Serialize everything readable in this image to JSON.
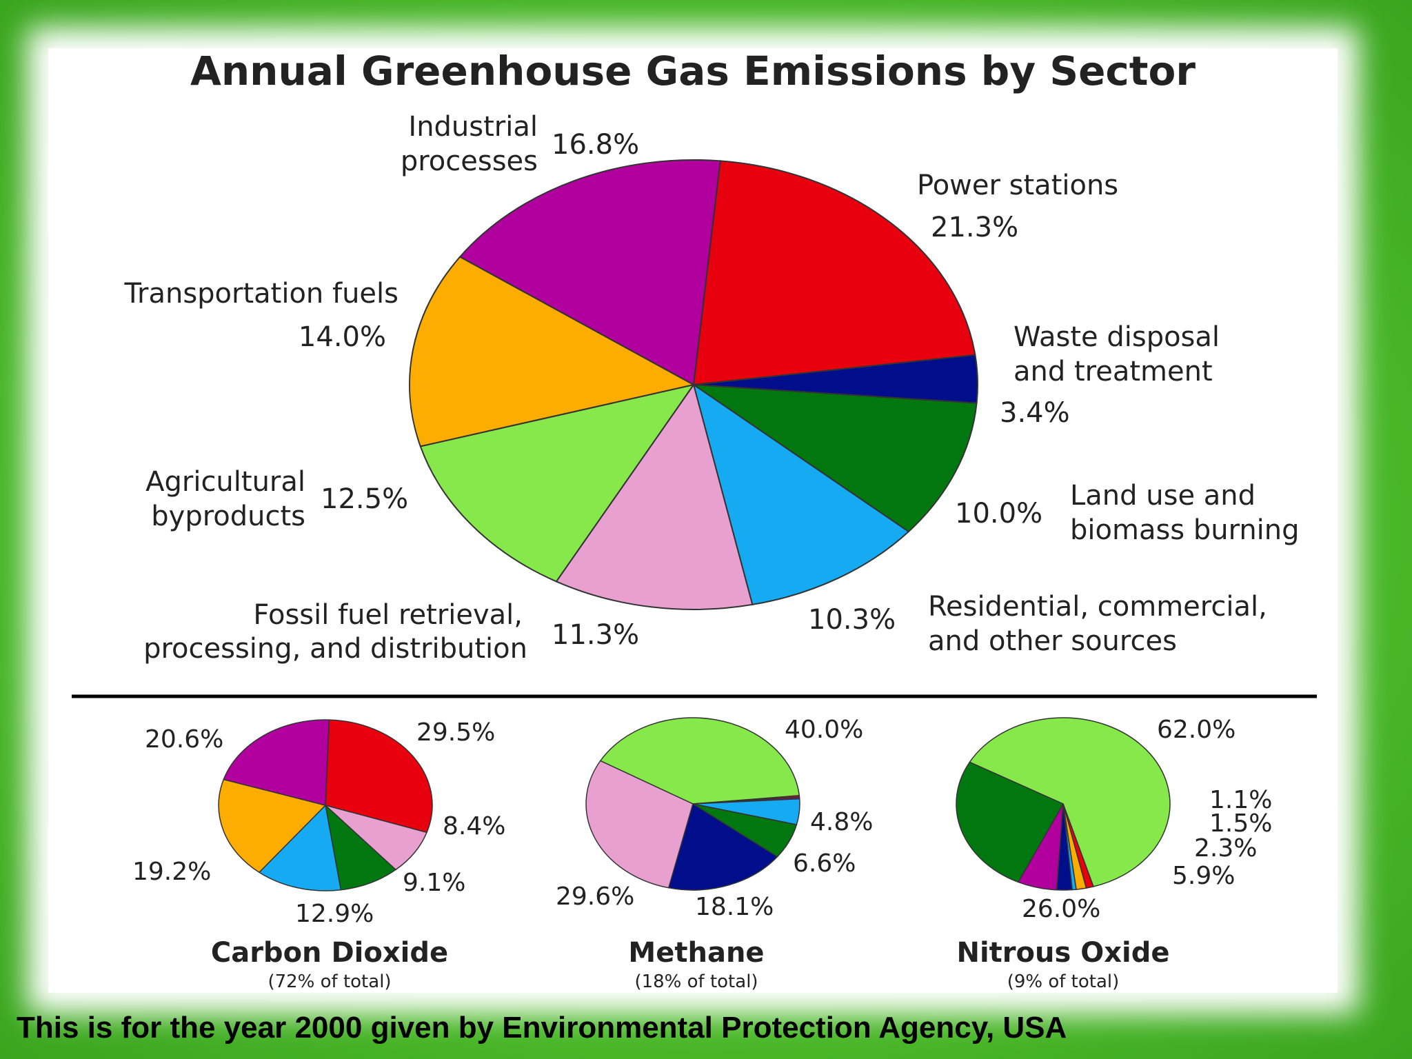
{
  "title": "Annual Greenhouse Gas Emissions by Sector",
  "footer": "This is for the year 2000 given by Environmental Protection Agency, USA",
  "colors": {
    "power": "#e8000f",
    "waste": "#000e8c",
    "land": "#00780f",
    "residential": "#16aaf2",
    "fossil": "#e8a0d0",
    "agricultural": "#86e84a",
    "transport": "#fdac00",
    "industrial": "#b2009e"
  },
  "chart_data": [
    {
      "type": "pie",
      "title": "Annual Greenhouse Gas Emissions by Sector",
      "slices": [
        {
          "label": "Power stations",
          "value": 21.3,
          "value_label": "21.3%",
          "color": "#e8000f"
        },
        {
          "label": "Waste disposal and treatment",
          "value": 3.4,
          "value_label": "3.4%",
          "color": "#000e8c"
        },
        {
          "label": "Land use and biomass burning",
          "value": 10.0,
          "value_label": "10.0%",
          "color": "#00780f"
        },
        {
          "label": "Residential, commercial, and other sources",
          "value": 10.3,
          "value_label": "10.3%",
          "color": "#16aaf2"
        },
        {
          "label": "Fossil fuel retrieval, processing, and distribution",
          "value": 11.3,
          "value_label": "11.3%",
          "color": "#e8a0d0"
        },
        {
          "label": "Agricultural byproducts",
          "value": 12.5,
          "value_label": "12.5%",
          "color": "#86e84a"
        },
        {
          "label": "Transportation fuels",
          "value": 14.0,
          "value_label": "14.0%",
          "color": "#fdac00"
        },
        {
          "label": "Industrial processes",
          "value": 16.8,
          "value_label": "16.8%",
          "color": "#b2009e"
        }
      ],
      "category_label_lines": [
        [
          "Power stations"
        ],
        [
          "Waste disposal",
          "and treatment"
        ],
        [
          "Land use and",
          "biomass burning"
        ],
        [
          "Residential, commercial,",
          "and other sources"
        ],
        [
          "Fossil fuel retrieval,",
          "processing, and distribution"
        ],
        [
          "Agricultural",
          "byproducts"
        ],
        [
          "Transportation fuels"
        ],
        [
          "Industrial",
          "processes"
        ]
      ]
    },
    {
      "type": "pie",
      "title": "Carbon Dioxide",
      "subtitle": "(72% of total)",
      "slices": [
        {
          "sector": "Power stations",
          "value": 29.5,
          "value_label": "29.5%",
          "color": "#e8000f"
        },
        {
          "sector": "Fossil fuel retrieval, processing, and distribution",
          "value": 8.4,
          "value_label": "8.4%",
          "color": "#e8a0d0"
        },
        {
          "sector": "Land use and biomass burning",
          "value": 9.1,
          "value_label": "9.1%",
          "color": "#00780f"
        },
        {
          "sector": "Residential, commercial, and other sources",
          "value": 12.9,
          "value_label": "12.9%",
          "color": "#16aaf2"
        },
        {
          "sector": "Transportation fuels",
          "value": 19.2,
          "value_label": "19.2%",
          "color": "#fdac00"
        },
        {
          "sector": "Industrial processes",
          "value": 20.6,
          "value_label": "20.6%",
          "color": "#b2009e"
        }
      ]
    },
    {
      "type": "pie",
      "title": "Methane",
      "subtitle": "(18% of total)",
      "slices": [
        {
          "sector": "Agricultural byproducts",
          "value": 40.0,
          "value_label": "40.0%",
          "color": "#86e84a"
        },
        {
          "sector": "Power stations",
          "value": 0.3,
          "value_label": "",
          "color": "#e8000f"
        },
        {
          "sector": "Industrial processes",
          "value": 0.3,
          "value_label": "",
          "color": "#b2009e"
        },
        {
          "sector": "Residential, commercial, and other sources",
          "value": 4.8,
          "value_label": "4.8%",
          "color": "#16aaf2"
        },
        {
          "sector": "Land use and biomass burning",
          "value": 6.6,
          "value_label": "6.6%",
          "color": "#00780f"
        },
        {
          "sector": "Waste disposal and treatment",
          "value": 18.1,
          "value_label": "18.1%",
          "color": "#000e8c"
        },
        {
          "sector": "Fossil fuel retrieval, processing, and distribution",
          "value": 29.6,
          "value_label": "29.6%",
          "color": "#e8a0d0"
        }
      ]
    },
    {
      "type": "pie",
      "title": "Nitrous Oxide",
      "subtitle": "(9% of total)",
      "slices": [
        {
          "sector": "Agricultural byproducts",
          "value": 62.0,
          "value_label": "62.0%",
          "color": "#86e84a"
        },
        {
          "sector": "Power stations",
          "value": 1.1,
          "value_label": "1.1%",
          "color": "#e8000f"
        },
        {
          "sector": "Transportation fuels",
          "value": 1.5,
          "value_label": "1.5%",
          "color": "#fdac00"
        },
        {
          "sector": "Residential, commercial, and other sources",
          "value": 0.6,
          "value_label": "",
          "color": "#16aaf2"
        },
        {
          "sector": "Waste disposal and treatment",
          "value": 2.3,
          "value_label": "2.3%",
          "color": "#000e8c"
        },
        {
          "sector": "Industrial processes",
          "value": 5.9,
          "value_label": "5.9%",
          "color": "#b2009e"
        },
        {
          "sector": "Land use and biomass burning",
          "value": 26.0,
          "value_label": "26.0%",
          "color": "#00780f"
        }
      ]
    }
  ]
}
